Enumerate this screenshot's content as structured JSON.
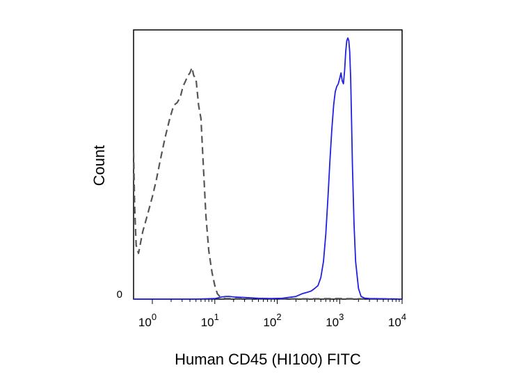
{
  "chart_data": {
    "type": "line",
    "title": "",
    "xlabel": "Human CD45 (HI100) FITC",
    "ylabel": "Count",
    "xscale": "log",
    "xlim": [
      0.5,
      10000
    ],
    "ylim": [
      0,
      1.0
    ],
    "y_tick_label": "0",
    "x_ticks": [
      {
        "base": "10",
        "exp": "0",
        "value": 1
      },
      {
        "base": "10",
        "exp": "1",
        "value": 10
      },
      {
        "base": "10",
        "exp": "2",
        "value": 100
      },
      {
        "base": "10",
        "exp": "3",
        "value": 1000
      },
      {
        "base": "10",
        "exp": "4",
        "value": 10000
      }
    ],
    "grid": false,
    "legend": false,
    "series": [
      {
        "color": "#555555",
        "dash": "dashed",
        "x": [
          0.5,
          0.52,
          0.55,
          0.6,
          0.7,
          0.85,
          1.0,
          1.15,
          1.35,
          1.6,
          1.9,
          2.2,
          2.5,
          2.8,
          3.1,
          3.4,
          3.7,
          4.0,
          4.3,
          4.6,
          5.0,
          5.5,
          6.0,
          6.6,
          7.2,
          8.0,
          9.0,
          10.0,
          11.0,
          12.0,
          13.0,
          14.0,
          15.0,
          20.0,
          50.0,
          100.0,
          300.0,
          1000.0,
          2000.0,
          10000.0
        ],
        "y": [
          0.55,
          0.35,
          0.2,
          0.17,
          0.25,
          0.32,
          0.38,
          0.44,
          0.52,
          0.6,
          0.67,
          0.72,
          0.73,
          0.75,
          0.79,
          0.81,
          0.83,
          0.84,
          0.86,
          0.83,
          0.82,
          0.72,
          0.67,
          0.48,
          0.31,
          0.18,
          0.1,
          0.05,
          0.02,
          0.01,
          0.005,
          0.003,
          0.002,
          0.002,
          0.001,
          0.001,
          0.001,
          0.002,
          0.001,
          0.0
        ]
      },
      {
        "color": "#2020e0",
        "dash": "solid",
        "x": [
          0.5,
          5,
          10,
          13,
          15,
          17,
          20,
          30,
          50,
          80,
          120,
          200,
          250,
          300,
          350,
          400,
          450,
          500,
          550,
          600,
          650,
          700,
          750,
          800,
          850,
          900,
          950,
          1000,
          1050,
          1100,
          1150,
          1200,
          1250,
          1300,
          1350,
          1400,
          1450,
          1500,
          1550,
          1600,
          1700,
          1800,
          2000,
          2200,
          2500,
          3000,
          10000
        ],
        "y": [
          0.0,
          0.0,
          0.002,
          0.008,
          0.01,
          0.01,
          0.008,
          0.006,
          0.003,
          0.002,
          0.003,
          0.01,
          0.02,
          0.025,
          0.03,
          0.04,
          0.05,
          0.08,
          0.14,
          0.24,
          0.38,
          0.52,
          0.63,
          0.72,
          0.77,
          0.79,
          0.8,
          0.82,
          0.84,
          0.81,
          0.8,
          0.85,
          0.92,
          0.96,
          0.97,
          0.96,
          0.92,
          0.82,
          0.67,
          0.5,
          0.28,
          0.14,
          0.04,
          0.01,
          0.004,
          0.002,
          0.0
        ]
      }
    ]
  }
}
